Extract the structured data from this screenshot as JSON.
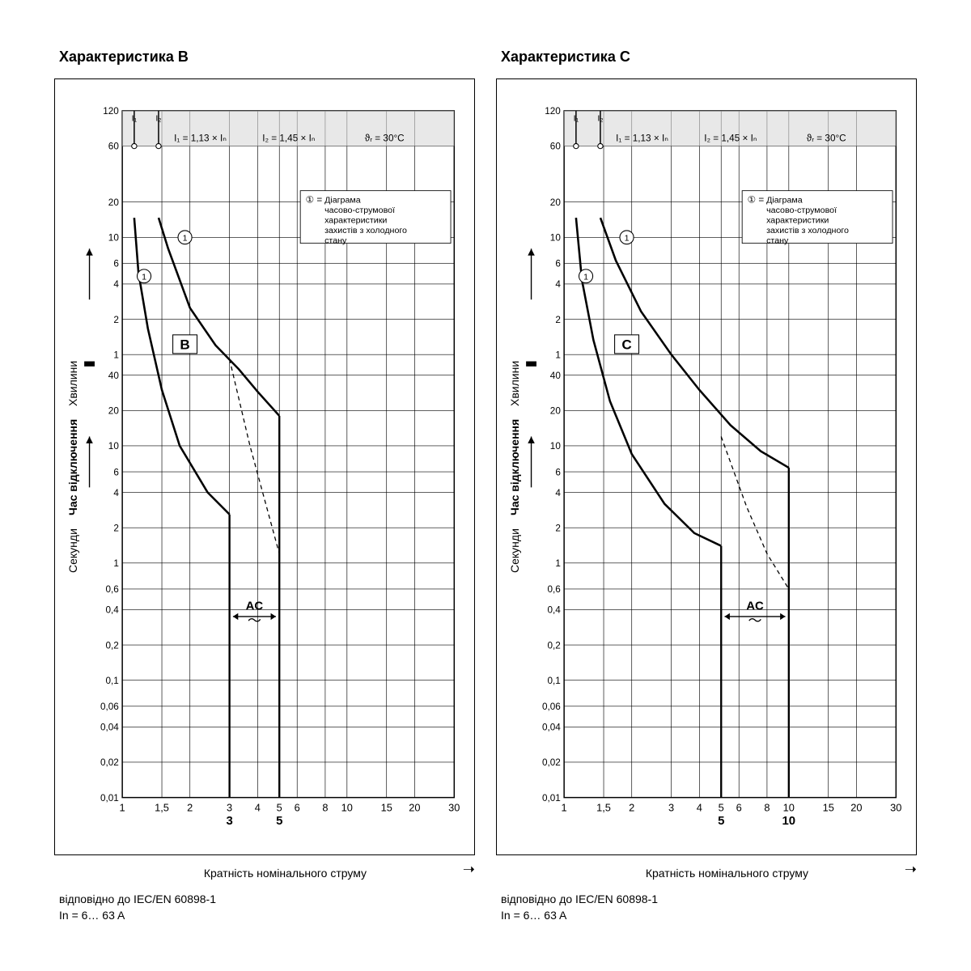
{
  "colors": {
    "bg": "#ffffff",
    "ink": "#000000",
    "grid": "#000000",
    "fill_hatch": "#d9d9d9",
    "curve": "#000000"
  },
  "axes": {
    "x": {
      "label": "Кратність номінального струму",
      "ticks": [
        1,
        1.5,
        2,
        3,
        4,
        5,
        6,
        8,
        10,
        15,
        20,
        30
      ],
      "domain": [
        1,
        30
      ],
      "type": "log"
    },
    "y": {
      "label": "Час відключення",
      "sub_upper": "Хвилини",
      "sub_lower": "Секунди",
      "ticks_upper_minutes": [
        120,
        60,
        20,
        10,
        6,
        4,
        2,
        1
      ],
      "ticks_lower_seconds": [
        40,
        20,
        10,
        6,
        4,
        2,
        1,
        0.6,
        0.4,
        0.2,
        0.1,
        0.06,
        0.04,
        0.02,
        0.01
      ],
      "type": "log"
    }
  },
  "header": {
    "i1": "I₁ = 1,13 × Iₙ",
    "i2": "I₂ = 1,45 × Iₙ",
    "temp": "ϑᵣ = 30°C",
    "legend_note_head": "① =",
    "legend_note": "Діаграма часово-струмової характеристики захистів з холодного стану"
  },
  "ac_label": "AC",
  "panelB": {
    "title": "Характеристика B",
    "badge": "B",
    "trip_lo": 3,
    "trip_hi": 5,
    "footer_l1": "відповідно до IEC/EN 60898-1",
    "footer_l2": "In = 6… 63 A",
    "upper_curve": [
      [
        1.45,
        880
      ],
      [
        1.6,
        480
      ],
      [
        2.0,
        150
      ],
      [
        2.6,
        72
      ],
      [
        3.3,
        45
      ],
      [
        4.0,
        29
      ],
      [
        5.0,
        18
      ]
    ],
    "lower_curve": [
      [
        1.13,
        880
      ],
      [
        1.18,
        300
      ],
      [
        1.3,
        100
      ],
      [
        1.5,
        30
      ],
      [
        1.8,
        10
      ],
      [
        2.4,
        4.0
      ],
      [
        3.0,
        2.6
      ]
    ],
    "dash_curve": [
      [
        3.0,
        55
      ],
      [
        3.7,
        10
      ],
      [
        5.0,
        1.2
      ]
    ]
  },
  "panelC": {
    "title": "Характеристика C",
    "badge": "C",
    "trip_lo": 5,
    "trip_hi": 10,
    "footer_l1": "відповідно до IEC/EN 60898-1",
    "footer_l2": "In = 6… 63 A",
    "upper_curve": [
      [
        1.45,
        880
      ],
      [
        1.7,
        380
      ],
      [
        2.2,
        140
      ],
      [
        3.0,
        60
      ],
      [
        4.0,
        30
      ],
      [
        5.5,
        15
      ],
      [
        7.5,
        9
      ],
      [
        10.0,
        6.5
      ]
    ],
    "lower_curve": [
      [
        1.13,
        880
      ],
      [
        1.2,
        260
      ],
      [
        1.35,
        80
      ],
      [
        1.6,
        24
      ],
      [
        2.0,
        8.5
      ],
      [
        2.8,
        3.2
      ],
      [
        3.8,
        1.8
      ],
      [
        5.0,
        1.4
      ]
    ],
    "dash_curve": [
      [
        5.0,
        12
      ],
      [
        6.5,
        3.0
      ],
      [
        8.0,
        1.2
      ],
      [
        10.0,
        0.6
      ]
    ]
  },
  "marker1": "①",
  "ilabel1": "I₁",
  "ilabel2": "I₂"
}
